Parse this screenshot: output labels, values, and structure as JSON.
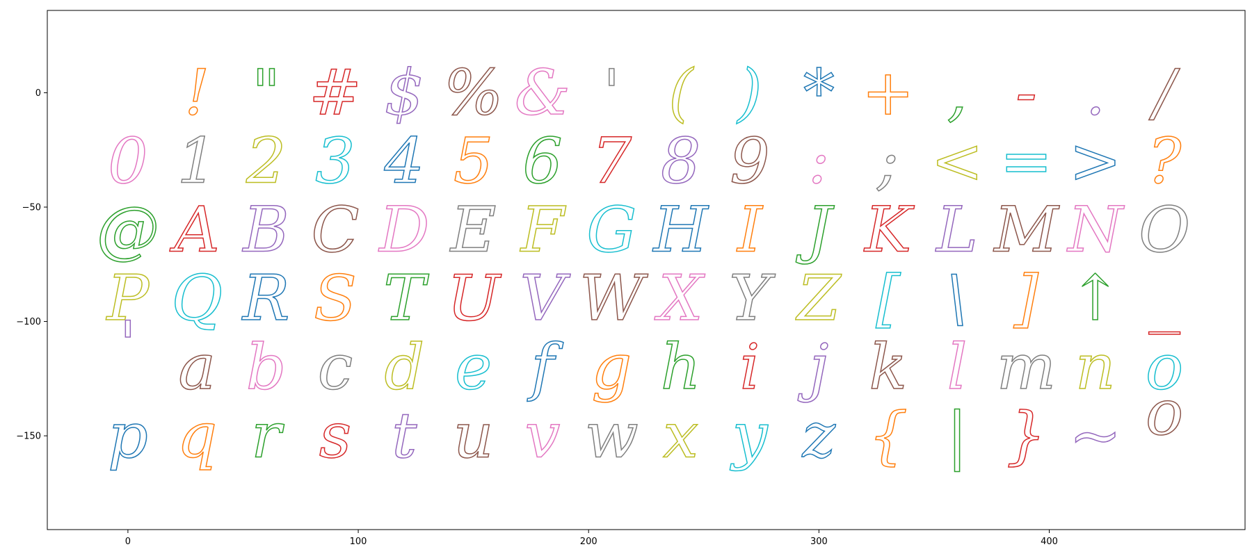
{
  "chart_data": {
    "type": "scatter",
    "title": "",
    "xlabel": "",
    "ylabel": "",
    "xlim": [
      -35,
      485
    ],
    "ylim": [
      -191,
      36
    ],
    "x_ticks": [
      "0",
      "100",
      "200",
      "300",
      "400"
    ],
    "y_ticks": [
      "0",
      "−50",
      "−100",
      "−150"
    ],
    "x_tick_values": [
      0,
      100,
      200,
      300,
      400
    ],
    "y_tick_values": [
      0,
      -50,
      -100,
      -150
    ],
    "glyphs": [
      {
        "char": "!",
        "x": 30,
        "y": 0,
        "color": "#ff7f0e"
      },
      {
        "char": "\"",
        "x": 60,
        "y": 0,
        "color": "#2ca02c"
      },
      {
        "char": "#",
        "x": 90,
        "y": 0,
        "color": "#d62728"
      },
      {
        "char": "$",
        "x": 120,
        "y": 0,
        "color": "#9467bd"
      },
      {
        "char": "%",
        "x": 150,
        "y": 0,
        "color": "#8c564b"
      },
      {
        "char": "&",
        "x": 180,
        "y": 0,
        "color": "#e377c2"
      },
      {
        "char": "'",
        "x": 210,
        "y": 0,
        "color": "#7f7f7f"
      },
      {
        "char": "(",
        "x": 240,
        "y": 0,
        "color": "#bcbd22"
      },
      {
        "char": ")",
        "x": 270,
        "y": 0,
        "color": "#17becf"
      },
      {
        "char": "*",
        "x": 300,
        "y": 0,
        "color": "#1f77b4"
      },
      {
        "char": "+",
        "x": 330,
        "y": 0,
        "color": "#ff7f0e"
      },
      {
        "char": ",",
        "x": 360,
        "y": 0,
        "color": "#2ca02c"
      },
      {
        "char": "-",
        "x": 390,
        "y": 0,
        "color": "#d62728"
      },
      {
        "char": ".",
        "x": 420,
        "y": 0,
        "color": "#9467bd"
      },
      {
        "char": "/",
        "x": 450,
        "y": 0,
        "color": "#8c564b"
      },
      {
        "char": "0",
        "x": 0,
        "y": -30,
        "color": "#e377c2"
      },
      {
        "char": "1",
        "x": 30,
        "y": -30,
        "color": "#7f7f7f"
      },
      {
        "char": "2",
        "x": 60,
        "y": -30,
        "color": "#bcbd22"
      },
      {
        "char": "3",
        "x": 90,
        "y": -30,
        "color": "#17becf"
      },
      {
        "char": "4",
        "x": 120,
        "y": -30,
        "color": "#1f77b4"
      },
      {
        "char": "5",
        "x": 150,
        "y": -30,
        "color": "#ff7f0e"
      },
      {
        "char": "6",
        "x": 180,
        "y": -30,
        "color": "#2ca02c"
      },
      {
        "char": "7",
        "x": 210,
        "y": -30,
        "color": "#d62728"
      },
      {
        "char": "8",
        "x": 240,
        "y": -30,
        "color": "#9467bd"
      },
      {
        "char": "9",
        "x": 270,
        "y": -30,
        "color": "#8c564b"
      },
      {
        "char": ":",
        "x": 300,
        "y": -30,
        "color": "#e377c2"
      },
      {
        "char": ";",
        "x": 330,
        "y": -30,
        "color": "#7f7f7f"
      },
      {
        "char": "<",
        "x": 360,
        "y": -30,
        "color": "#bcbd22"
      },
      {
        "char": "=",
        "x": 390,
        "y": -30,
        "color": "#17becf"
      },
      {
        "char": ">",
        "x": 420,
        "y": -30,
        "color": "#1f77b4"
      },
      {
        "char": "?",
        "x": 450,
        "y": -30,
        "color": "#ff7f0e"
      },
      {
        "char": "@",
        "x": 0,
        "y": -60,
        "color": "#2ca02c"
      },
      {
        "char": "A",
        "x": 30,
        "y": -60,
        "color": "#d62728"
      },
      {
        "char": "B",
        "x": 60,
        "y": -60,
        "color": "#9467bd"
      },
      {
        "char": "C",
        "x": 90,
        "y": -60,
        "color": "#8c564b"
      },
      {
        "char": "D",
        "x": 120,
        "y": -60,
        "color": "#e377c2"
      },
      {
        "char": "E",
        "x": 150,
        "y": -60,
        "color": "#7f7f7f"
      },
      {
        "char": "F",
        "x": 180,
        "y": -60,
        "color": "#bcbd22"
      },
      {
        "char": "G",
        "x": 210,
        "y": -60,
        "color": "#17becf"
      },
      {
        "char": "H",
        "x": 240,
        "y": -60,
        "color": "#1f77b4"
      },
      {
        "char": "I",
        "x": 270,
        "y": -60,
        "color": "#ff7f0e"
      },
      {
        "char": "J",
        "x": 300,
        "y": -60,
        "color": "#2ca02c"
      },
      {
        "char": "K",
        "x": 330,
        "y": -60,
        "color": "#d62728"
      },
      {
        "char": "L",
        "x": 360,
        "y": -60,
        "color": "#9467bd"
      },
      {
        "char": "M",
        "x": 390,
        "y": -60,
        "color": "#8c564b"
      },
      {
        "char": "N",
        "x": 420,
        "y": -60,
        "color": "#e377c2"
      },
      {
        "char": "O",
        "x": 450,
        "y": -60,
        "color": "#7f7f7f"
      },
      {
        "char": "P",
        "x": 0,
        "y": -90,
        "color": "#bcbd22"
      },
      {
        "char": "Q",
        "x": 30,
        "y": -90,
        "color": "#17becf"
      },
      {
        "char": "R",
        "x": 60,
        "y": -90,
        "color": "#1f77b4"
      },
      {
        "char": "S",
        "x": 90,
        "y": -90,
        "color": "#ff7f0e"
      },
      {
        "char": "T",
        "x": 120,
        "y": -90,
        "color": "#2ca02c"
      },
      {
        "char": "U",
        "x": 150,
        "y": -90,
        "color": "#d62728"
      },
      {
        "char": "V",
        "x": 180,
        "y": -90,
        "color": "#9467bd"
      },
      {
        "char": "W",
        "x": 210,
        "y": -90,
        "color": "#8c564b"
      },
      {
        "char": "X",
        "x": 240,
        "y": -90,
        "color": "#e377c2"
      },
      {
        "char": "Y",
        "x": 270,
        "y": -90,
        "color": "#7f7f7f"
      },
      {
        "char": "Z",
        "x": 300,
        "y": -90,
        "color": "#bcbd22"
      },
      {
        "char": "[",
        "x": 330,
        "y": -90,
        "color": "#17becf"
      },
      {
        "char": "\\",
        "x": 360,
        "y": -90,
        "color": "#1f77b4"
      },
      {
        "char": "]",
        "x": 390,
        "y": -90,
        "color": "#ff7f0e"
      },
      {
        "char": "↑",
        "x": 420,
        "y": -90,
        "color": "#2ca02c"
      },
      {
        "char": "_",
        "x": 450,
        "y": -90,
        "color": "#d62728"
      },
      {
        "char": "'",
        "x": 0,
        "y": -110,
        "color": "#9467bd"
      },
      {
        "char": "a",
        "x": 30,
        "y": -120,
        "color": "#8c564b"
      },
      {
        "char": "b",
        "x": 60,
        "y": -120,
        "color": "#e377c2"
      },
      {
        "char": "c",
        "x": 90,
        "y": -120,
        "color": "#7f7f7f"
      },
      {
        "char": "d",
        "x": 120,
        "y": -120,
        "color": "#bcbd22"
      },
      {
        "char": "e",
        "x": 150,
        "y": -120,
        "color": "#17becf"
      },
      {
        "char": "f",
        "x": 180,
        "y": -120,
        "color": "#1f77b4"
      },
      {
        "char": "g",
        "x": 210,
        "y": -120,
        "color": "#ff7f0e"
      },
      {
        "char": "h",
        "x": 240,
        "y": -120,
        "color": "#2ca02c"
      },
      {
        "char": "i",
        "x": 270,
        "y": -120,
        "color": "#d62728"
      },
      {
        "char": "j",
        "x": 300,
        "y": -120,
        "color": "#9467bd"
      },
      {
        "char": "k",
        "x": 330,
        "y": -120,
        "color": "#8c564b"
      },
      {
        "char": "l",
        "x": 360,
        "y": -120,
        "color": "#e377c2"
      },
      {
        "char": "m",
        "x": 390,
        "y": -120,
        "color": "#7f7f7f"
      },
      {
        "char": "n",
        "x": 420,
        "y": -120,
        "color": "#bcbd22"
      },
      {
        "char": "o",
        "x": 450,
        "y": -120,
        "color": "#17becf"
      },
      {
        "char": "p",
        "x": 0,
        "y": -150,
        "color": "#1f77b4"
      },
      {
        "char": "q",
        "x": 30,
        "y": -150,
        "color": "#ff7f0e"
      },
      {
        "char": "r",
        "x": 60,
        "y": -150,
        "color": "#2ca02c"
      },
      {
        "char": "s",
        "x": 90,
        "y": -150,
        "color": "#d62728"
      },
      {
        "char": "t",
        "x": 120,
        "y": -150,
        "color": "#9467bd"
      },
      {
        "char": "u",
        "x": 150,
        "y": -150,
        "color": "#8c564b"
      },
      {
        "char": "v",
        "x": 180,
        "y": -150,
        "color": "#e377c2"
      },
      {
        "char": "w",
        "x": 210,
        "y": -150,
        "color": "#7f7f7f"
      },
      {
        "char": "x",
        "x": 240,
        "y": -150,
        "color": "#bcbd22"
      },
      {
        "char": "y",
        "x": 270,
        "y": -150,
        "color": "#17becf"
      },
      {
        "char": "z",
        "x": 300,
        "y": -150,
        "color": "#1f77b4"
      },
      {
        "char": "{",
        "x": 330,
        "y": -150,
        "color": "#ff7f0e"
      },
      {
        "char": "|",
        "x": 360,
        "y": -150,
        "color": "#2ca02c"
      },
      {
        "char": "}",
        "x": 390,
        "y": -150,
        "color": "#d62728"
      },
      {
        "char": "~",
        "x": 420,
        "y": -150,
        "color": "#9467bd"
      },
      {
        "char": "o",
        "x": 450,
        "y": -140,
        "color": "#8c564b"
      }
    ]
  }
}
